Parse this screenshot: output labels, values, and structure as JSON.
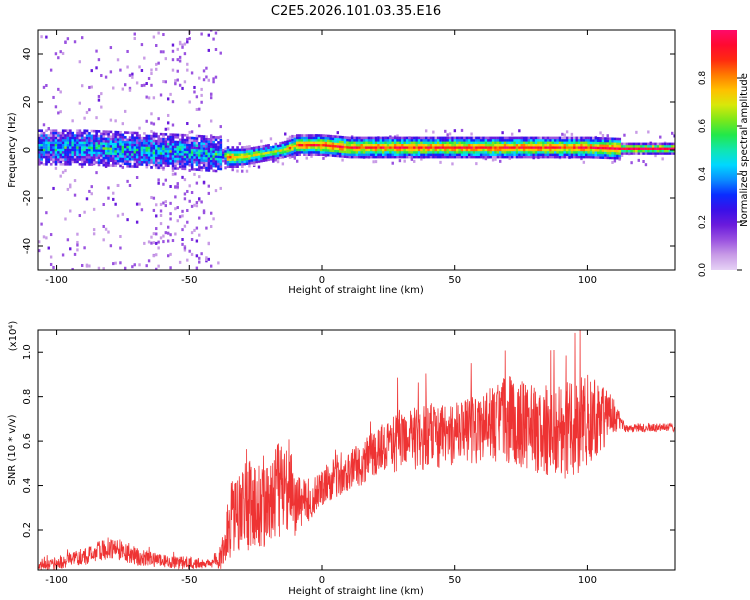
{
  "figure_title": "C2E5.2026.101.03.35.E16",
  "chart_data": [
    {
      "type": "heatmap",
      "title": "C2E5.2026.101.03.35.E16",
      "xlabel": "Height of straight line (km)",
      "ylabel": "Frequency (Hz)",
      "xlim": [
        -107,
        133
      ],
      "ylim": [
        -50,
        50
      ],
      "xticks": [
        -100,
        -50,
        0,
        50,
        100
      ],
      "yticks": [
        -40,
        -20,
        0,
        20,
        40
      ],
      "colorbar": {
        "label": "Normalized spectral amplitude",
        "range": [
          0,
          1
        ],
        "ticks": [
          0.0,
          0.2,
          0.4,
          0.6,
          0.8
        ],
        "colormap": [
          "#e6d2f5",
          "#c89be6",
          "#9a52e0",
          "#6a1bdc",
          "#3a10e8",
          "#0a2cff",
          "#0a8cff",
          "#00d8ff",
          "#10e6b0",
          "#22e84a",
          "#7ce81a",
          "#d8e80a",
          "#ffc000",
          "#ff7a00",
          "#ff2a10",
          "#ff0a30",
          "#ff0a6a"
        ]
      },
      "ridge": {
        "x": [
          -107,
          -90,
          -70,
          -50,
          -38,
          -36,
          -30,
          -25,
          -20,
          -15,
          -12,
          -10,
          0,
          10,
          20,
          30,
          40,
          50,
          60,
          70,
          80,
          90,
          100,
          112,
          133
        ],
        "y": [
          1,
          1,
          0,
          -1,
          -2,
          -3,
          -3,
          -2,
          -1,
          0,
          1,
          2,
          2,
          1,
          1,
          1,
          1,
          1,
          1,
          1,
          1,
          1,
          1,
          0.5,
          0.5
        ],
        "amplitude": [
          0.3,
          0.3,
          0.3,
          0.3,
          0.3,
          0.85,
          0.75,
          0.7,
          0.65,
          0.7,
          0.8,
          0.85,
          0.9,
          0.9,
          0.9,
          0.9,
          0.9,
          0.9,
          0.9,
          0.9,
          0.9,
          0.9,
          0.9,
          0.95,
          1.0
        ]
      }
    },
    {
      "type": "line",
      "xlabel": "Height of straight line (km)",
      "ylabel": "SNR (10 * v/v)",
      "y_multiplier_label": "(x10⁴)",
      "xlim": [
        -107,
        133
      ],
      "ylim": [
        0.02,
        1.1
      ],
      "xticks": [
        -100,
        -50,
        0,
        50,
        100
      ],
      "yticks": [
        0.2,
        0.4,
        0.6,
        0.8,
        1.0
      ],
      "series": [
        {
          "color": "#ee3333",
          "x": [
            -107,
            -100,
            -90,
            -80,
            -75,
            -70,
            -60,
            -50,
            -42,
            -38,
            -35,
            -30,
            -25,
            -20,
            -15,
            -12,
            -10,
            -5,
            0,
            5,
            10,
            15,
            20,
            25,
            30,
            40,
            50,
            60,
            70,
            80,
            90,
            100,
            105,
            110,
            114,
            120,
            133
          ],
          "y": [
            0.04,
            0.05,
            0.08,
            0.12,
            0.11,
            0.08,
            0.06,
            0.05,
            0.05,
            0.08,
            0.22,
            0.3,
            0.32,
            0.34,
            0.4,
            0.42,
            0.3,
            0.34,
            0.39,
            0.44,
            0.47,
            0.5,
            0.55,
            0.58,
            0.6,
            0.62,
            0.64,
            0.66,
            0.7,
            0.66,
            0.64,
            0.68,
            0.7,
            0.72,
            0.66,
            0.66,
            0.66
          ],
          "spread": [
            0.02,
            0.03,
            0.04,
            0.05,
            0.05,
            0.04,
            0.03,
            0.03,
            0.02,
            0.06,
            0.18,
            0.2,
            0.2,
            0.22,
            0.24,
            0.2,
            0.14,
            0.1,
            0.08,
            0.1,
            0.1,
            0.1,
            0.1,
            0.12,
            0.14,
            0.15,
            0.15,
            0.16,
            0.2,
            0.2,
            0.22,
            0.22,
            0.16,
            0.08,
            0.02,
            0.02,
            0.02
          ]
        }
      ]
    }
  ]
}
